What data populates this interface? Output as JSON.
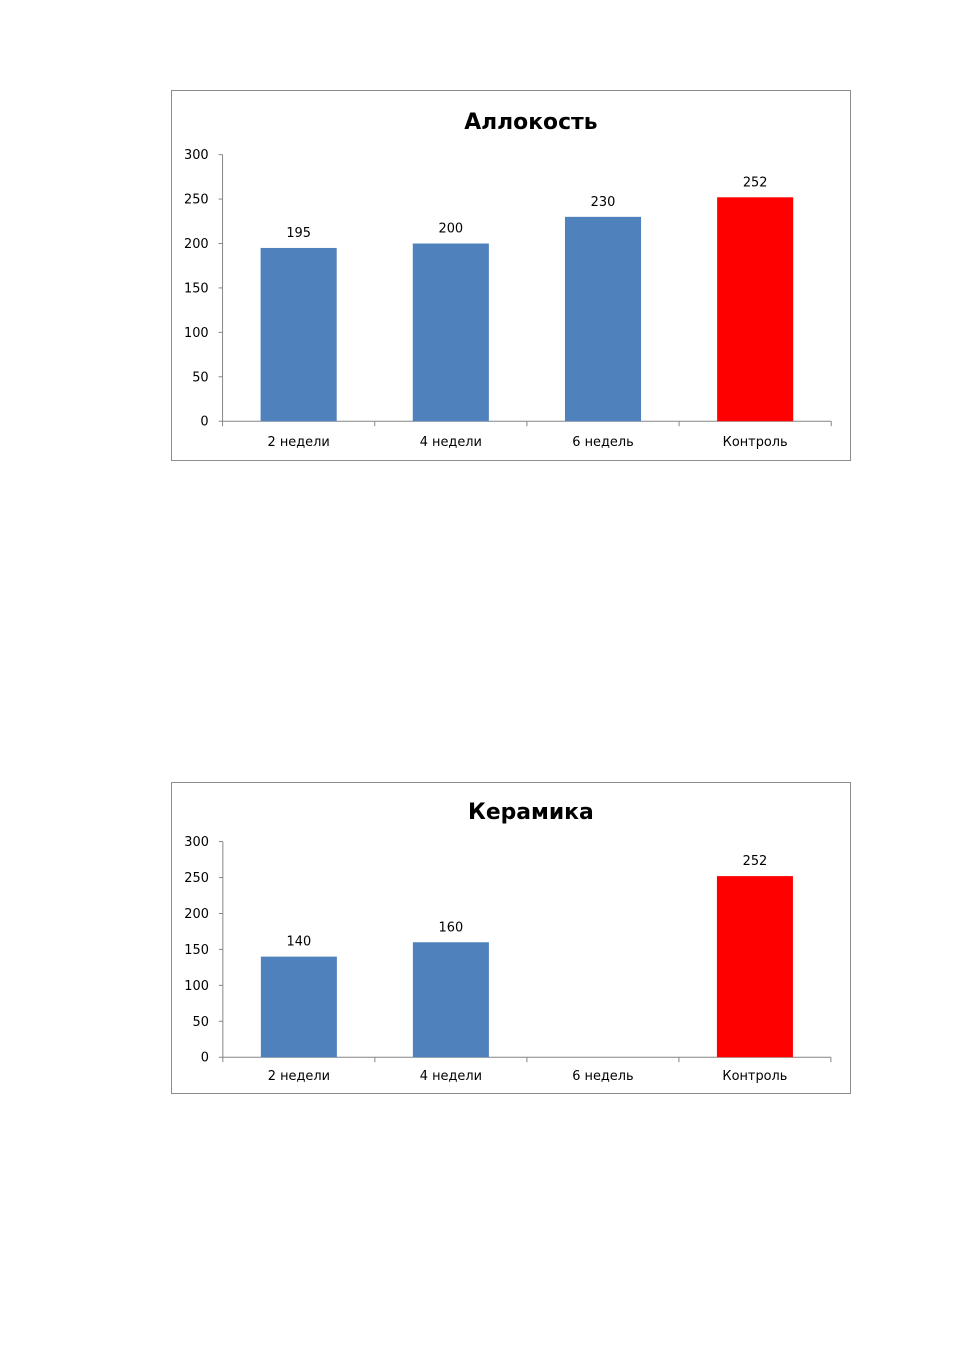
{
  "chart_data": [
    {
      "type": "bar",
      "title": "Аллокость",
      "categories": [
        "2 недели",
        "4 недели",
        "6 недель",
        "Контроль"
      ],
      "values": [
        195,
        200,
        230,
        252
      ],
      "data_labels": [
        "195",
        "200",
        "230",
        "252"
      ],
      "bar_colors": [
        "#4f81bd",
        "#4f81bd",
        "#4f81bd",
        "#ff0000"
      ],
      "ylim": [
        0,
        300
      ],
      "yticks": [
        0,
        50,
        100,
        150,
        200,
        250,
        300
      ],
      "ytick_labels": [
        "0",
        "50",
        "100",
        "150",
        "200",
        "250",
        "300"
      ],
      "xlabel": "",
      "ylabel": "",
      "grid": false,
      "legend": "none"
    },
    {
      "type": "bar",
      "title": "Керамика",
      "categories": [
        "2 недели",
        "4 недели",
        "6 недель",
        "Контроль"
      ],
      "values": [
        140,
        160,
        null,
        252
      ],
      "data_labels": [
        "140",
        "160",
        "",
        "252"
      ],
      "bar_colors": [
        "#4f81bd",
        "#4f81bd",
        "#4f81bd",
        "#ff0000"
      ],
      "ylim": [
        0,
        300
      ],
      "yticks": [
        0,
        50,
        100,
        150,
        200,
        250,
        300
      ],
      "ytick_labels": [
        "0",
        "50",
        "100",
        "150",
        "200",
        "250",
        "300"
      ],
      "xlabel": "",
      "ylabel": "",
      "grid": false,
      "legend": "none"
    }
  ]
}
